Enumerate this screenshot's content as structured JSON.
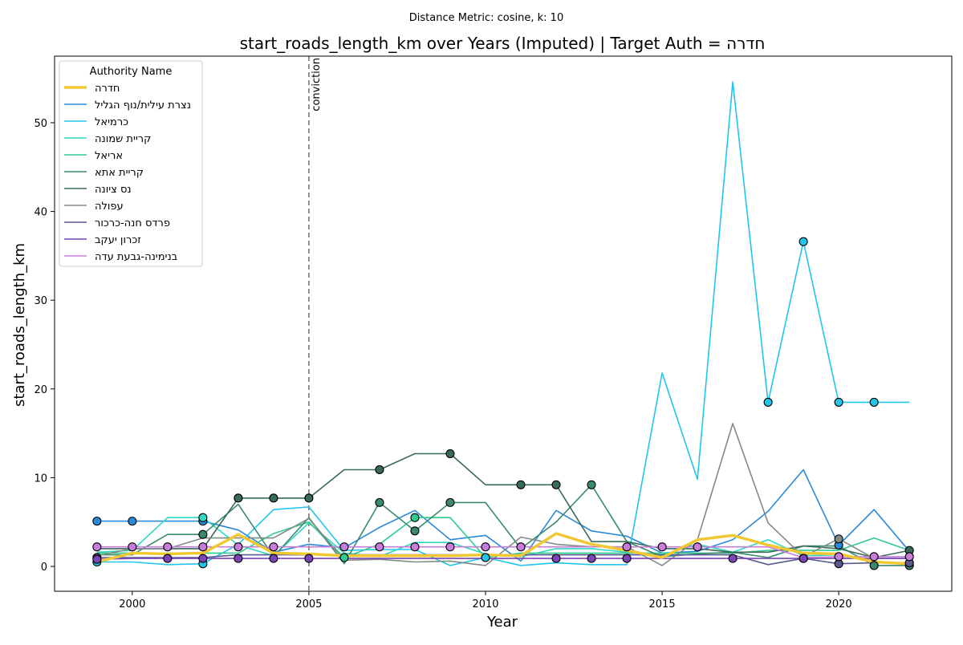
{
  "suptitle": "Distance Metric: cosine, k: 10",
  "chart_data": {
    "type": "line",
    "title": "start_roads_length_km over Years (Imputed) | Target Auth = חדרה",
    "xlabel": "Year",
    "ylabel": "start_roads_length_km",
    "xlim": [
      1997.8,
      2023.2
    ],
    "ylim": [
      -2.8,
      57.5
    ],
    "xticks": [
      2000,
      2005,
      2010,
      2015,
      2020
    ],
    "yticks": [
      0,
      10,
      20,
      30,
      40,
      50
    ],
    "x": [
      1999,
      2000,
      2001,
      2002,
      2003,
      2004,
      2005,
      2006,
      2007,
      2008,
      2009,
      2010,
      2011,
      2012,
      2013,
      2014,
      2015,
      2016,
      2017,
      2018,
      2019,
      2020,
      2021,
      2022
    ],
    "vline": {
      "x": 2005,
      "label": "conviction",
      "color": "#777777"
    },
    "legend": {
      "title": "Authority Name",
      "location": "upper-left"
    },
    "series": [
      {
        "name": "חדרה",
        "color": "#f1c832",
        "width": 3.5,
        "target": true,
        "values": [
          0.5,
          1.5,
          1.4,
          1.5,
          3.6,
          1.5,
          1.4,
          1.2,
          1.2,
          1.2,
          1.2,
          1.3,
          1.2,
          3.7,
          2.5,
          1.8,
          1.0,
          3.0,
          3.5,
          2.4,
          1.5,
          1.4,
          0.5,
          0.3
        ],
        "markers": []
      },
      {
        "name": "נצרת עילית/נוף הגליל",
        "color": "#2a8ad8",
        "width": 1.6,
        "values": [
          5.1,
          5.1,
          5.1,
          5.1,
          4.1,
          1.6,
          2.5,
          2.1,
          4.4,
          6.3,
          3.0,
          3.5,
          0.6,
          6.3,
          4.0,
          3.4,
          1.5,
          1.7,
          3.0,
          6.2,
          10.9,
          2.4,
          6.4,
          1.7
        ],
        "markers": [
          0,
          1,
          3,
          21
        ]
      },
      {
        "name": "כרמיאל",
        "color": "#22c5ea",
        "width": 1.6,
        "values": [
          0.5,
          0.5,
          0.2,
          0.3,
          2.5,
          6.4,
          6.7,
          1.8,
          1.9,
          1.9,
          0.1,
          1.0,
          0.1,
          0.4,
          0.2,
          0.2,
          21.8,
          9.8,
          54.6,
          18.5,
          36.6,
          18.5,
          18.5,
          18.5
        ],
        "markers": [
          0,
          3,
          11,
          19,
          20,
          21,
          22
        ]
      },
      {
        "name": "קריית שמונה",
        "color": "#2fd8c0",
        "width": 1.6,
        "values": [
          1.6,
          1.8,
          5.5,
          5.5,
          2.4,
          1.2,
          4.9,
          1.5,
          1.1,
          2.7,
          2.7,
          1.4,
          1.1,
          2.0,
          2.0,
          1.6,
          1.3,
          2.5,
          1.6,
          3.0,
          1.2,
          1.3,
          0.5,
          0.3
        ],
        "markers": [
          3
        ]
      },
      {
        "name": "אריאל",
        "color": "#30cc8c",
        "width": 1.6,
        "values": [
          1.5,
          1.5,
          1.5,
          1.5,
          1.5,
          3.7,
          5.0,
          1.0,
          2.5,
          5.5,
          5.5,
          1.0,
          1.5,
          1.5,
          1.5,
          1.5,
          1.5,
          1.5,
          1.5,
          1.8,
          1.8,
          1.8,
          3.2,
          1.8
        ],
        "markers": [
          7,
          9
        ]
      },
      {
        "name": "קריית אתא",
        "color": "#3a8a70",
        "width": 1.6,
        "values": [
          1.3,
          1.3,
          3.6,
          3.6,
          7.0,
          1.1,
          5.5,
          0.3,
          7.2,
          4.0,
          7.2,
          7.2,
          2.0,
          5.0,
          9.2,
          2.8,
          1.1,
          1.4,
          1.6,
          1.0,
          2.3,
          2.3,
          0.1,
          0.1
        ],
        "markers": [
          3,
          8,
          9,
          10,
          14,
          22,
          23
        ]
      },
      {
        "name": "נס ציונה",
        "color": "#3a6a58",
        "width": 1.6,
        "values": [
          2.0,
          2.0,
          2.0,
          2.0,
          7.7,
          7.7,
          7.7,
          10.9,
          10.9,
          12.7,
          12.7,
          9.2,
          9.2,
          9.2,
          2.8,
          2.8,
          2.0,
          2.0,
          1.6,
          1.6,
          2.3,
          2.0,
          1.0,
          1.8
        ],
        "markers": [
          4,
          5,
          6,
          8,
          10,
          12,
          13,
          23
        ]
      },
      {
        "name": "עפולה",
        "color": "#7f8b88",
        "width": 1.6,
        "values": [
          1.2,
          2.0,
          2.0,
          3.2,
          3.2,
          3.2,
          5.4,
          0.7,
          0.8,
          0.5,
          0.6,
          0.1,
          3.3,
          2.5,
          2.2,
          2.2,
          0.1,
          3.0,
          16.1,
          4.9,
          1.1,
          3.1,
          0.9,
          0.9
        ],
        "markers": [
          21
        ]
      },
      {
        "name": "פרדס חנה-כרכור",
        "color": "#5a5a92",
        "width": 1.6,
        "values": [
          1.0,
          1.0,
          1.0,
          1.0,
          1.3,
          1.3,
          1.3,
          1.3,
          1.3,
          1.3,
          1.3,
          1.3,
          1.3,
          1.3,
          1.3,
          1.3,
          1.3,
          1.3,
          1.3,
          0.2,
          0.9,
          0.3,
          0.4,
          0.4
        ],
        "markers": [
          0,
          20,
          21,
          23
        ]
      },
      {
        "name": "זכרון יעקב",
        "color": "#7d44b8",
        "width": 1.6,
        "values": [
          0.8,
          0.9,
          0.9,
          0.9,
          0.9,
          0.9,
          0.9,
          0.9,
          0.9,
          0.9,
          0.9,
          0.9,
          0.9,
          0.9,
          0.9,
          0.9,
          0.9,
          0.9,
          0.9,
          0.9,
          0.9,
          0.9,
          0.9,
          0.9
        ],
        "markers": [
          0,
          2,
          3,
          4,
          5,
          6,
          13,
          14,
          15,
          18,
          20
        ]
      },
      {
        "name": "בנימינה-גבעת עדה",
        "color": "#c87cdc",
        "width": 1.6,
        "values": [
          2.2,
          2.2,
          2.2,
          2.2,
          2.2,
          2.2,
          2.2,
          2.2,
          2.2,
          2.2,
          2.2,
          2.2,
          2.2,
          2.2,
          2.2,
          2.2,
          2.2,
          2.2,
          2.2,
          2.2,
          1.0,
          1.1,
          1.1,
          1.1
        ],
        "markers": [
          0,
          1,
          2,
          3,
          4,
          5,
          7,
          8,
          9,
          10,
          11,
          12,
          15,
          16,
          17,
          21,
          22,
          23
        ]
      }
    ]
  }
}
